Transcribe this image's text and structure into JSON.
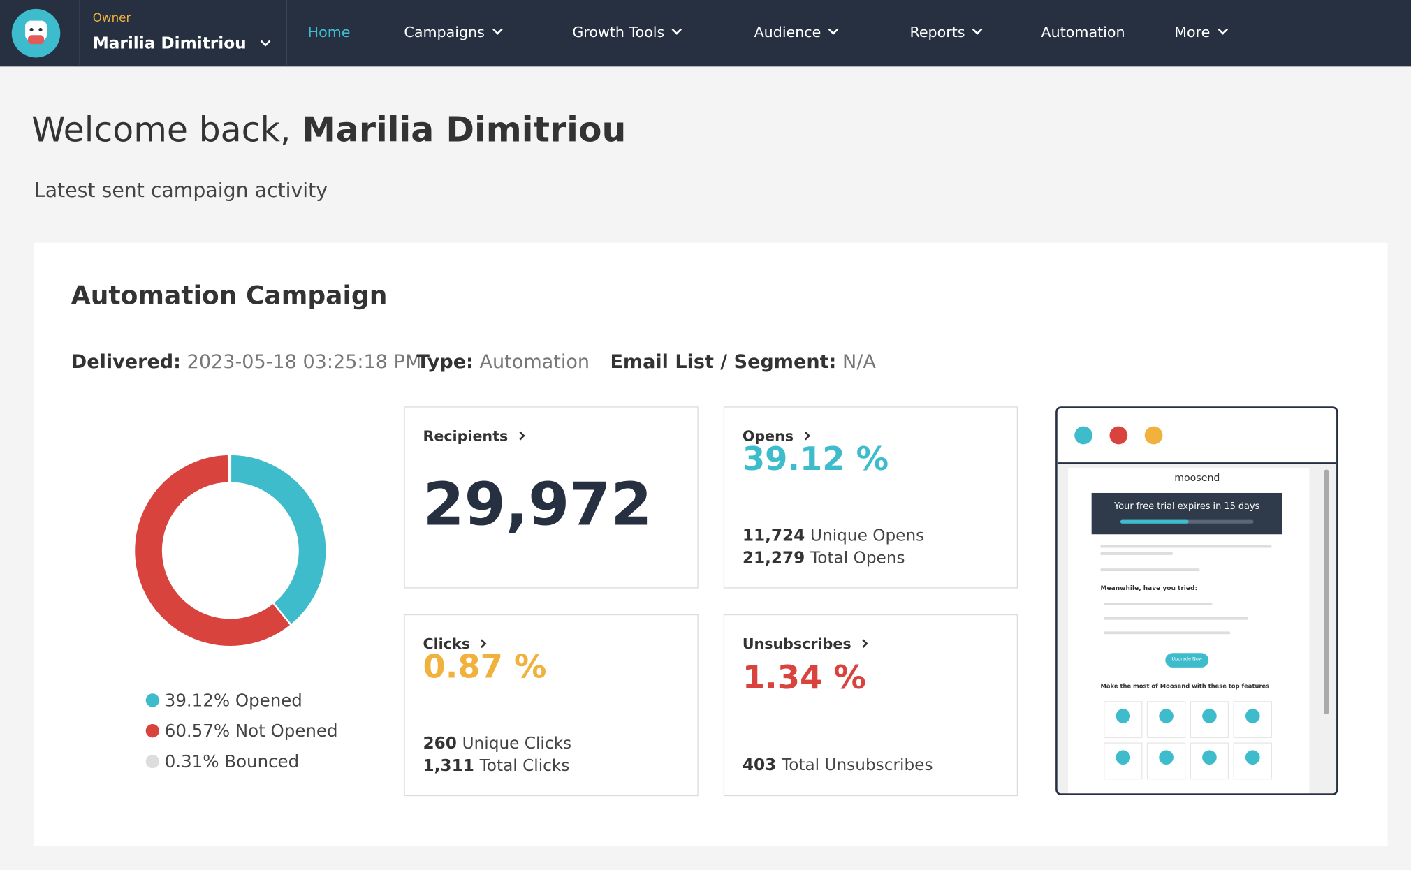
{
  "nav": {
    "role": "Owner",
    "user": "Marilia Dimitriou",
    "items": [
      {
        "label": "Home",
        "active": true,
        "menu": false
      },
      {
        "label": "Campaigns",
        "active": false,
        "menu": true
      },
      {
        "label": "Growth Tools",
        "active": false,
        "menu": true
      },
      {
        "label": "Audience",
        "active": false,
        "menu": true
      },
      {
        "label": "Reports",
        "active": false,
        "menu": true
      },
      {
        "label": "Automation",
        "active": false,
        "menu": false
      },
      {
        "label": "More",
        "active": false,
        "menu": true
      }
    ]
  },
  "welcome": {
    "greeting": "Welcome back,",
    "name": "Marilia Dimitriou"
  },
  "subtitle": "Latest sent campaign activity",
  "campaign": {
    "title": "Automation Campaign",
    "meta": [
      {
        "label": "Delivered:",
        "value": "2023-05-18 03:25:18 PM"
      },
      {
        "label": "Type:",
        "value": "Automation"
      },
      {
        "label": "Email List / Segment:",
        "value": "N/A"
      }
    ],
    "donut": {
      "segments": [
        {
          "value": 39.12,
          "label": "39.12% Opened",
          "color": "#3fbccc"
        },
        {
          "value": 60.57,
          "label": "60.57% Not Opened",
          "color": "#d9433d"
        },
        {
          "value": 0.31,
          "label": "0.31% Bounced",
          "color": "#dddddd"
        }
      ]
    },
    "stats": [
      {
        "title": "Recipients",
        "big": "29,972",
        "color": "#263040",
        "lines": []
      },
      {
        "title": "Opens",
        "big": "39.12 %",
        "color": "#3fbccc",
        "lines": [
          {
            "count": "11,724",
            "text": "Unique Opens"
          },
          {
            "count": "21,279",
            "text": "Total Opens"
          }
        ]
      },
      {
        "title": "Clicks",
        "big": "0.87 %",
        "color": "#f0b23c",
        "lines": [
          {
            "count": "260",
            "text": "Unique Clicks"
          },
          {
            "count": "1,311",
            "text": "Total Clicks"
          }
        ]
      },
      {
        "title": "Unsubscribes",
        "big": "1.34 %",
        "color": "#d9433d",
        "lines": [
          {
            "count": "403",
            "text": "Total Unsubscribes"
          }
        ]
      }
    ],
    "preview": {
      "brand": "moosend",
      "banner": "Your free trial expires in 15 days",
      "tried": "Meanwhile, have you tried:",
      "button": "Upgrade Now",
      "features": "Make the most of Moosend with these top features"
    }
  }
}
